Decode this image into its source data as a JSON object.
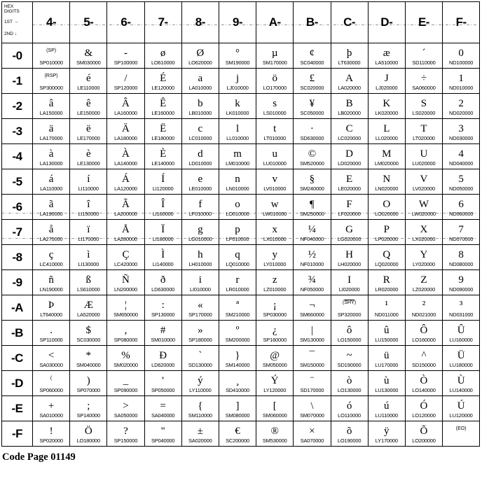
{
  "header": {
    "corner": {
      "line1": "HEX",
      "line2": "DIGITS",
      "line3": "1ST →",
      "line4": "2ND ↓"
    },
    "columns": [
      "4-",
      "5-",
      "6-",
      "7-",
      "8-",
      "9-",
      "A-",
      "B-",
      "C-",
      "D-",
      "E-",
      "F-"
    ]
  },
  "footer": "Code Page 01149",
  "rows": [
    {
      "label": "-0",
      "cells": [
        {
          "g": "(SP)",
          "c": "SP010000"
        },
        {
          "g": "&",
          "c": "SM030000"
        },
        {
          "g": "-",
          "c": "SP100000"
        },
        {
          "g": "ø",
          "c": "LO610000"
        },
        {
          "g": "Ø",
          "c": "LO620000"
        },
        {
          "g": "°",
          "c": "SM190000"
        },
        {
          "g": "µ",
          "c": "SM170000"
        },
        {
          "g": "¢",
          "c": "SC040000"
        },
        {
          "g": "þ",
          "c": "LT630000"
        },
        {
          "g": "æ",
          "c": "LA510000"
        },
        {
          "g": "´",
          "c": "SD110000"
        },
        {
          "g": "0",
          "c": "ND100000"
        }
      ]
    },
    {
      "label": "-1",
      "cells": [
        {
          "g": "(RSP)",
          "c": "SP300000"
        },
        {
          "g": "é",
          "c": "LE110000"
        },
        {
          "g": "/",
          "c": "SP120000"
        },
        {
          "g": "É",
          "c": "LE120000"
        },
        {
          "g": "a",
          "c": "LA010000"
        },
        {
          "g": "j",
          "c": "LJ010000"
        },
        {
          "g": "ö",
          "c": "LO170000"
        },
        {
          "g": "£",
          "c": "SC020000"
        },
        {
          "g": "A",
          "c": "LA020000"
        },
        {
          "g": "J",
          "c": "LJ020000"
        },
        {
          "g": "÷",
          "c": "SA060000"
        },
        {
          "g": "1",
          "c": "ND010000"
        }
      ]
    },
    {
      "label": "-2",
      "cells": [
        {
          "g": "â",
          "c": "LA150000"
        },
        {
          "g": "ê",
          "c": "LE150000"
        },
        {
          "g": "Â",
          "c": "LA160000"
        },
        {
          "g": "Ê",
          "c": "LE160000"
        },
        {
          "g": "b",
          "c": "LB010000"
        },
        {
          "g": "k",
          "c": "LK010000"
        },
        {
          "g": "s",
          "c": "LS010000"
        },
        {
          "g": "¥",
          "c": "SC050000"
        },
        {
          "g": "B",
          "c": "LB020000"
        },
        {
          "g": "K",
          "c": "LK020000"
        },
        {
          "g": "S",
          "c": "LS020000"
        },
        {
          "g": "2",
          "c": "ND020000"
        }
      ]
    },
    {
      "label": "-3",
      "cells": [
        {
          "g": "ä",
          "c": "LA170000"
        },
        {
          "g": "ë",
          "c": "LE170000"
        },
        {
          "g": "Ä",
          "c": "LA180000"
        },
        {
          "g": "Ë",
          "c": "LE180000"
        },
        {
          "g": "c",
          "c": "LC010000"
        },
        {
          "g": "l",
          "c": "LL010000"
        },
        {
          "g": "t",
          "c": "LT010000"
        },
        {
          "g": "·",
          "c": "SD630000"
        },
        {
          "g": "C",
          "c": "LC020000"
        },
        {
          "g": "L",
          "c": "LL020000"
        },
        {
          "g": "T",
          "c": "LT020000"
        },
        {
          "g": "3",
          "c": "ND030000"
        }
      ]
    },
    {
      "label": "-4",
      "cells": [
        {
          "g": "à",
          "c": "LA130000"
        },
        {
          "g": "è",
          "c": "LE130000"
        },
        {
          "g": "À",
          "c": "LA140000"
        },
        {
          "g": "È",
          "c": "LE140000"
        },
        {
          "g": "d",
          "c": "LD010000"
        },
        {
          "g": "m",
          "c": "LM010000"
        },
        {
          "g": "u",
          "c": "LU010000"
        },
        {
          "g": "©",
          "c": "SM520000"
        },
        {
          "g": "D",
          "c": "LD020000"
        },
        {
          "g": "M",
          "c": "LM020000"
        },
        {
          "g": "U",
          "c": "LU020000"
        },
        {
          "g": "4",
          "c": "ND040000"
        }
      ]
    },
    {
      "label": "-5",
      "cells": [
        {
          "g": "á",
          "c": "LA110000"
        },
        {
          "g": "í",
          "c": "LI110000"
        },
        {
          "g": "Á",
          "c": "LA120000"
        },
        {
          "g": "Í",
          "c": "LI120000"
        },
        {
          "g": "e",
          "c": "LE010000"
        },
        {
          "g": "n",
          "c": "LN010000"
        },
        {
          "g": "v",
          "c": "LV010000"
        },
        {
          "g": "§",
          "c": "SM240000"
        },
        {
          "g": "E",
          "c": "LE020000"
        },
        {
          "g": "N",
          "c": "LN020000"
        },
        {
          "g": "V",
          "c": "LV020000"
        },
        {
          "g": "5",
          "c": "ND050000"
        }
      ]
    },
    {
      "label": "-6",
      "cells": [
        {
          "g": "ã",
          "c": "LA190000"
        },
        {
          "g": "î",
          "c": "LI150000"
        },
        {
          "g": "Ã",
          "c": "LA200000"
        },
        {
          "g": "Î",
          "c": "LI160000"
        },
        {
          "g": "f",
          "c": "LF010000"
        },
        {
          "g": "o",
          "c": "LO010000"
        },
        {
          "g": "w",
          "c": "LW010000"
        },
        {
          "g": "¶",
          "c": "SM250000"
        },
        {
          "g": "F",
          "c": "LF020000"
        },
        {
          "g": "O",
          "c": "LO020000"
        },
        {
          "g": "W",
          "c": "LW020000"
        },
        {
          "g": "6",
          "c": "ND060000"
        }
      ]
    },
    {
      "label": "-7",
      "cells": [
        {
          "g": "å",
          "c": "LA270000"
        },
        {
          "g": "ï",
          "c": "LI170000"
        },
        {
          "g": "Å",
          "c": "LA280000"
        },
        {
          "g": "Ï",
          "c": "LI180000"
        },
        {
          "g": "g",
          "c": "LG010000"
        },
        {
          "g": "p",
          "c": "LP010000"
        },
        {
          "g": "x",
          "c": "LX010000"
        },
        {
          "g": "¼",
          "c": "NF040000"
        },
        {
          "g": "G",
          "c": "LG020000"
        },
        {
          "g": "P",
          "c": "LP020000"
        },
        {
          "g": "X",
          "c": "LX020000"
        },
        {
          "g": "7",
          "c": "ND070000"
        }
      ]
    },
    {
      "label": "-8",
      "cells": [
        {
          "g": "ç",
          "c": "LC410000"
        },
        {
          "g": "ì",
          "c": "LI130000"
        },
        {
          "g": "Ç",
          "c": "LC420000"
        },
        {
          "g": "Ì",
          "c": "LI140000"
        },
        {
          "g": "h",
          "c": "LH010000"
        },
        {
          "g": "q",
          "c": "LQ010000"
        },
        {
          "g": "y",
          "c": "LY010000"
        },
        {
          "g": "½",
          "c": "NF010000"
        },
        {
          "g": "H",
          "c": "LH020000"
        },
        {
          "g": "Q",
          "c": "LQ020000"
        },
        {
          "g": "Y",
          "c": "LY020000"
        },
        {
          "g": "8",
          "c": "ND080000"
        }
      ]
    },
    {
      "label": "-9",
      "cells": [
        {
          "g": "ñ",
          "c": "LN190000"
        },
        {
          "g": "ß",
          "c": "LS610000"
        },
        {
          "g": "Ñ",
          "c": "LN200000"
        },
        {
          "g": "ð",
          "c": "LD630000"
        },
        {
          "g": "i",
          "c": "LI010000"
        },
        {
          "g": "r",
          "c": "LR010000"
        },
        {
          "g": "z",
          "c": "LZ010000"
        },
        {
          "g": "¾",
          "c": "NF050000"
        },
        {
          "g": "I",
          "c": "LI020000"
        },
        {
          "g": "R",
          "c": "LR020000"
        },
        {
          "g": "Z",
          "c": "LZ020000"
        },
        {
          "g": "9",
          "c": "ND090000"
        }
      ]
    },
    {
      "label": "-A",
      "cells": [
        {
          "g": "Þ",
          "c": "LT640000"
        },
        {
          "g": "Æ",
          "c": "LA520000"
        },
        {
          "g": "¦",
          "c": "SM650000"
        },
        {
          "g": ":",
          "c": "SP130000"
        },
        {
          "g": "«",
          "c": "SP170000"
        },
        {
          "g": "ª",
          "c": "SM210000"
        },
        {
          "g": "¡",
          "c": "SP030000"
        },
        {
          "g": "¬",
          "c": "SM660000"
        },
        {
          "g": "(SHY)",
          "c": "SP320000",
          "ov": true
        },
        {
          "g": "¹",
          "c": "ND011000"
        },
        {
          "g": "²",
          "c": "ND021000"
        },
        {
          "g": "³",
          "c": "ND031000"
        }
      ]
    },
    {
      "label": "-B",
      "cells": [
        {
          "g": ".",
          "c": "SP110000"
        },
        {
          "g": "$",
          "c": "SC030000"
        },
        {
          "g": ",",
          "c": "SP080000"
        },
        {
          "g": "#",
          "c": "SM010000"
        },
        {
          "g": "»",
          "c": "SP180000"
        },
        {
          "g": "º",
          "c": "SM200000"
        },
        {
          "g": "¿",
          "c": "SP160000"
        },
        {
          "g": "|",
          "c": "SM130000"
        },
        {
          "g": "ô",
          "c": "LO150000"
        },
        {
          "g": "û",
          "c": "LU150000"
        },
        {
          "g": "Ô",
          "c": "LO160000"
        },
        {
          "g": "Û",
          "c": "LU160000"
        }
      ]
    },
    {
      "label": "-C",
      "cells": [
        {
          "g": "<",
          "c": "SA030000"
        },
        {
          "g": "*",
          "c": "SM040000"
        },
        {
          "g": "%",
          "c": "SM020000"
        },
        {
          "g": "Ð",
          "c": "LD620000"
        },
        {
          "g": "`",
          "c": "SD130000"
        },
        {
          "g": "}",
          "c": "SM140000"
        },
        {
          "g": "@",
          "c": "SM050000"
        },
        {
          "g": "¯",
          "c": "SM150000"
        },
        {
          "g": "~",
          "c": "SD190000"
        },
        {
          "g": "ü",
          "c": "LU170000"
        },
        {
          "g": "^",
          "c": "SD150000"
        },
        {
          "g": "Ü",
          "c": "LU180000"
        }
      ]
    },
    {
      "label": "-D",
      "cells": [
        {
          "g": "(",
          "c": "SP060000"
        },
        {
          "g": ")",
          "c": "SP070000"
        },
        {
          "g": "_",
          "c": "SP090000"
        },
        {
          "g": "'",
          "c": "SP050000"
        },
        {
          "g": "ý",
          "c": "LY110000"
        },
        {
          "g": "¸",
          "c": "SD410000"
        },
        {
          "g": "Ý",
          "c": "LY120000"
        },
        {
          "g": "¨",
          "c": "SD170000"
        },
        {
          "g": "ò",
          "c": "LO130000"
        },
        {
          "g": "ù",
          "c": "LU130000"
        },
        {
          "g": "Ò",
          "c": "LO140000"
        },
        {
          "g": "Ù",
          "c": "LU140000"
        }
      ]
    },
    {
      "label": "-E",
      "cells": [
        {
          "g": "+",
          "c": "SA010000"
        },
        {
          "g": ";",
          "c": "SP140000"
        },
        {
          "g": ">",
          "c": "SA050000"
        },
        {
          "g": "=",
          "c": "SA040000"
        },
        {
          "g": "{",
          "c": "SM110000"
        },
        {
          "g": "]",
          "c": "SM080000"
        },
        {
          "g": "[",
          "c": "SM060000"
        },
        {
          "g": "\\",
          "c": "SM070000"
        },
        {
          "g": "ó",
          "c": "LO110000"
        },
        {
          "g": "ú",
          "c": "LU110000"
        },
        {
          "g": "Ó",
          "c": "LO120000"
        },
        {
          "g": "Ú",
          "c": "LU120000"
        }
      ]
    },
    {
      "label": "-F",
      "cells": [
        {
          "g": "!",
          "c": "SP020000"
        },
        {
          "g": "Ö",
          "c": "LO180000"
        },
        {
          "g": "?",
          "c": "SP150000"
        },
        {
          "g": "\"",
          "c": "SP040000"
        },
        {
          "g": "±",
          "c": "SA020000"
        },
        {
          "g": "€",
          "c": "SC200000"
        },
        {
          "g": "®",
          "c": "SM530000"
        },
        {
          "g": "×",
          "c": "SA070000"
        },
        {
          "g": "õ",
          "c": "LO190000"
        },
        {
          "g": "ÿ",
          "c": "LY170000"
        },
        {
          "g": "Õ",
          "c": "LO200000"
        },
        {
          "g": "(EO)",
          "c": ""
        }
      ]
    }
  ]
}
